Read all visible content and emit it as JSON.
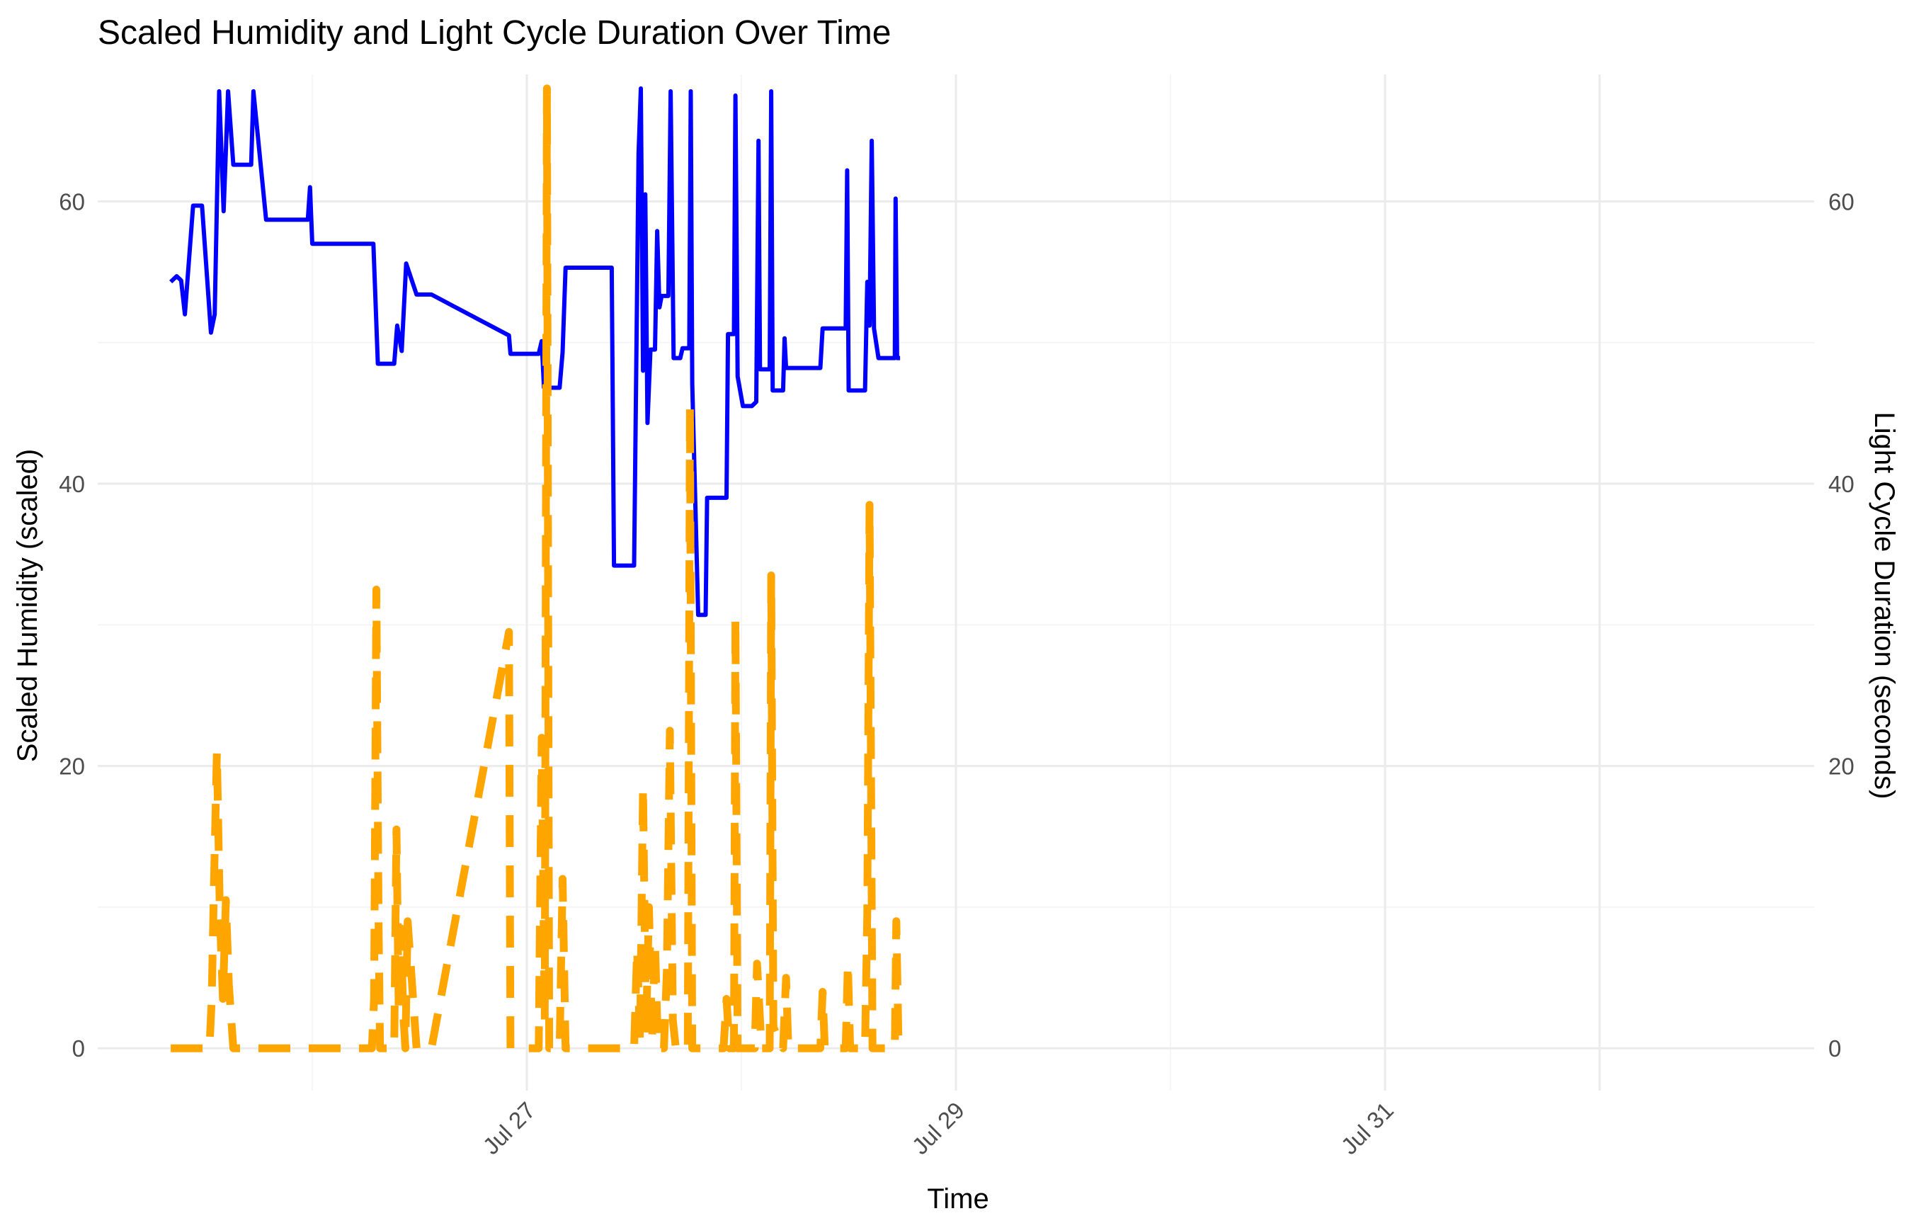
{
  "chart_data": {
    "type": "line",
    "title": "Scaled Humidity and Light Cycle Duration Over Time",
    "xlabel": "Time",
    "ylabel_left": "Scaled Humidity (scaled)",
    "ylabel_right": "Light Cycle Duration (seconds)",
    "x_unit": "days",
    "x_ticks": [
      {
        "x": "2024-07-27",
        "label": "Jul 27"
      },
      {
        "x": "2024-07-29",
        "label": "Jul 29"
      },
      {
        "x": "2024-07-31",
        "label": "Jul 31"
      }
    ],
    "xlim": [
      "2024-07-25 00:00",
      "2024-08-02 00:00"
    ],
    "ylim_left": [
      -3,
      69
    ],
    "ylim_right": [
      -3,
      69
    ],
    "y_ticks_left": [
      0,
      20,
      40,
      60
    ],
    "y_ticks_right": [
      0,
      20,
      40,
      60
    ],
    "grid": true,
    "series": [
      {
        "color": "#0000ff",
        "dash": "solid",
        "points": [
          [
            "2024-07-25 08:10",
            54.3
          ],
          [
            "2024-07-25 08:50",
            54.7
          ],
          [
            "2024-07-25 09:20",
            54.4
          ],
          [
            "2024-07-25 09:45",
            52.0
          ],
          [
            "2024-07-25 10:40",
            59.7
          ],
          [
            "2024-07-25 11:40",
            59.7
          ],
          [
            "2024-07-25 12:40",
            50.7
          ],
          [
            "2024-07-25 13:05",
            52.0
          ],
          [
            "2024-07-25 13:35",
            67.8
          ],
          [
            "2024-07-25 14:05",
            59.3
          ],
          [
            "2024-07-25 14:35",
            67.8
          ],
          [
            "2024-07-25 15:10",
            62.6
          ],
          [
            "2024-07-25 17:10",
            62.6
          ],
          [
            "2024-07-25 17:25",
            67.8
          ],
          [
            "2024-07-25 18:50",
            58.7
          ],
          [
            "2024-07-25 23:30",
            58.7
          ],
          [
            "2024-07-25 23:45",
            61.0
          ],
          [
            "2024-07-26 00:00",
            57.0
          ],
          [
            "2024-07-26 06:50",
            57.0
          ],
          [
            "2024-07-26 07:20",
            48.5
          ],
          [
            "2024-07-26 09:10",
            48.5
          ],
          [
            "2024-07-26 09:30",
            51.2
          ],
          [
            "2024-07-26 10:00",
            49.4
          ],
          [
            "2024-07-26 10:30",
            55.6
          ],
          [
            "2024-07-26 11:40",
            53.4
          ],
          [
            "2024-07-26 13:20",
            53.4
          ],
          [
            "2024-07-26 22:00",
            50.5
          ],
          [
            "2024-07-26 22:10",
            49.2
          ],
          [
            "2024-07-27 01:20",
            49.2
          ],
          [
            "2024-07-27 01:40",
            50.1
          ],
          [
            "2024-07-27 01:55",
            46.8
          ],
          [
            "2024-07-27 03:40",
            46.8
          ],
          [
            "2024-07-27 04:00",
            49.3
          ],
          [
            "2024-07-27 04:20",
            55.3
          ],
          [
            "2024-07-27 09:30",
            55.3
          ],
          [
            "2024-07-27 09:45",
            34.2
          ],
          [
            "2024-07-27 12:00",
            34.2
          ],
          [
            "2024-07-27 12:30",
            63.4
          ],
          [
            "2024-07-27 12:45",
            68.0
          ],
          [
            "2024-07-27 13:00",
            48.0
          ],
          [
            "2024-07-27 13:15",
            60.5
          ],
          [
            "2024-07-27 13:30",
            44.3
          ],
          [
            "2024-07-27 13:50",
            49.5
          ],
          [
            "2024-07-27 14:20",
            49.5
          ],
          [
            "2024-07-27 14:35",
            57.9
          ],
          [
            "2024-07-27 14:50",
            52.5
          ],
          [
            "2024-07-27 15:05",
            53.3
          ],
          [
            "2024-07-27 15:50",
            53.3
          ],
          [
            "2024-07-27 16:05",
            67.8
          ],
          [
            "2024-07-27 16:25",
            48.9
          ],
          [
            "2024-07-27 17:10",
            48.9
          ],
          [
            "2024-07-27 17:25",
            49.6
          ],
          [
            "2024-07-27 18:10",
            49.6
          ],
          [
            "2024-07-27 18:20",
            67.8
          ],
          [
            "2024-07-27 18:30",
            47.1
          ],
          [
            "2024-07-27 19:10",
            30.7
          ],
          [
            "2024-07-27 20:00",
            30.7
          ],
          [
            "2024-07-27 20:10",
            39.0
          ],
          [
            "2024-07-27 22:20",
            39.0
          ],
          [
            "2024-07-27 22:30",
            50.6
          ],
          [
            "2024-07-27 23:10",
            50.6
          ],
          [
            "2024-07-27 23:20",
            67.5
          ],
          [
            "2024-07-27 23:35",
            47.6
          ],
          [
            "2024-07-28 00:10",
            45.5
          ],
          [
            "2024-07-28 01:10",
            45.5
          ],
          [
            "2024-07-28 01:40",
            45.8
          ],
          [
            "2024-07-28 01:55",
            64.3
          ],
          [
            "2024-07-28 02:05",
            48.1
          ],
          [
            "2024-07-28 03:10",
            48.1
          ],
          [
            "2024-07-28 03:20",
            67.8
          ],
          [
            "2024-07-28 03:30",
            46.6
          ],
          [
            "2024-07-28 04:40",
            46.6
          ],
          [
            "2024-07-28 04:50",
            50.3
          ],
          [
            "2024-07-28 05:00",
            48.2
          ],
          [
            "2024-07-28 08:50",
            48.2
          ],
          [
            "2024-07-28 09:05",
            51.0
          ],
          [
            "2024-07-28 11:40",
            51.0
          ],
          [
            "2024-07-28 11:50",
            62.2
          ],
          [
            "2024-07-28 12:00",
            46.6
          ],
          [
            "2024-07-28 13:50",
            46.6
          ],
          [
            "2024-07-28 14:05",
            54.3
          ],
          [
            "2024-07-28 14:20",
            51.2
          ],
          [
            "2024-07-28 14:35",
            64.3
          ],
          [
            "2024-07-28 14:50",
            51.0
          ],
          [
            "2024-07-28 15:20",
            48.9
          ],
          [
            "2024-07-28 17:10",
            48.9
          ],
          [
            "2024-07-28 17:15",
            60.2
          ],
          [
            "2024-07-28 17:25",
            48.9
          ],
          [
            "2024-07-28 17:45",
            48.9
          ]
        ]
      },
      {
        "color": "#ffa500",
        "dash": "dashed",
        "points": [
          [
            "2024-07-25 08:10",
            0
          ],
          [
            "2024-07-25 12:30",
            0
          ],
          [
            "2024-07-25 12:45",
            3.5
          ],
          [
            "2024-07-25 13:00",
            11.5
          ],
          [
            "2024-07-25 13:20",
            21.0
          ],
          [
            "2024-07-25 13:40",
            9.5
          ],
          [
            "2024-07-25 14:00",
            3.5
          ],
          [
            "2024-07-25 14:20",
            10.5
          ],
          [
            "2024-07-25 14:40",
            4.5
          ],
          [
            "2024-07-25 15:10",
            0
          ],
          [
            "2024-07-26 06:40",
            0
          ],
          [
            "2024-07-26 06:55",
            3.5
          ],
          [
            "2024-07-26 07:10",
            32.5
          ],
          [
            "2024-07-26 07:25",
            9.0
          ],
          [
            "2024-07-26 07:35",
            0
          ],
          [
            "2024-07-26 09:10",
            0
          ],
          [
            "2024-07-26 09:25",
            15.5
          ],
          [
            "2024-07-26 09:40",
            3.0
          ],
          [
            "2024-07-26 09:55",
            8.5
          ],
          [
            "2024-07-26 10:10",
            2.5
          ],
          [
            "2024-07-26 10:25",
            0
          ],
          [
            "2024-07-26 10:40",
            9.0
          ],
          [
            "2024-07-26 11:40",
            0
          ],
          [
            "2024-07-26 13:20",
            0
          ],
          [
            "2024-07-26 22:00",
            29.5
          ],
          [
            "2024-07-26 22:10",
            0
          ],
          [
            "2024-07-27 01:20",
            0
          ],
          [
            "2024-07-27 01:40",
            22.0
          ],
          [
            "2024-07-27 02:00",
            2.0
          ],
          [
            "2024-07-27 02:15",
            68.0
          ],
          [
            "2024-07-27 02:30",
            0
          ],
          [
            "2024-07-27 03:40",
            0
          ],
          [
            "2024-07-27 04:00",
            12.0
          ],
          [
            "2024-07-27 04:20",
            0
          ],
          [
            "2024-07-27 12:00",
            0
          ],
          [
            "2024-07-27 12:20",
            7.0
          ],
          [
            "2024-07-27 12:40",
            0.5
          ],
          [
            "2024-07-27 13:00",
            18.5
          ],
          [
            "2024-07-27 13:20",
            1.0
          ],
          [
            "2024-07-27 13:40",
            10.0
          ],
          [
            "2024-07-27 14:00",
            0.5
          ],
          [
            "2024-07-27 14:20",
            7.5
          ],
          [
            "2024-07-27 14:40",
            0
          ],
          [
            "2024-07-27 15:20",
            0
          ],
          [
            "2024-07-27 15:40",
            5.5
          ],
          [
            "2024-07-27 16:00",
            22.5
          ],
          [
            "2024-07-27 16:20",
            2.0
          ],
          [
            "2024-07-27 16:40",
            0
          ],
          [
            "2024-07-27 18:00",
            0
          ],
          [
            "2024-07-27 18:15",
            45.5
          ],
          [
            "2024-07-27 18:30",
            0
          ],
          [
            "2024-07-27 22:00",
            0
          ],
          [
            "2024-07-27 22:20",
            3.5
          ],
          [
            "2024-07-27 22:40",
            0
          ],
          [
            "2024-07-27 23:10",
            0
          ],
          [
            "2024-07-27 23:20",
            30.5
          ],
          [
            "2024-07-27 23:35",
            0
          ],
          [
            "2024-07-28 01:30",
            0
          ],
          [
            "2024-07-28 01:45",
            6.0
          ],
          [
            "2024-07-28 02:00",
            3.0
          ],
          [
            "2024-07-28 02:15",
            0
          ],
          [
            "2024-07-28 03:10",
            0
          ],
          [
            "2024-07-28 03:20",
            33.5
          ],
          [
            "2024-07-28 03:35",
            1.5
          ],
          [
            "2024-07-28 04:40",
            0
          ],
          [
            "2024-07-28 05:00",
            5.0
          ],
          [
            "2024-07-28 05:15",
            0
          ],
          [
            "2024-07-28 08:50",
            0
          ],
          [
            "2024-07-28 09:05",
            4.0
          ],
          [
            "2024-07-28 09:20",
            0
          ],
          [
            "2024-07-28 11:40",
            0
          ],
          [
            "2024-07-28 11:55",
            6.0
          ],
          [
            "2024-07-28 12:10",
            0
          ],
          [
            "2024-07-28 13:50",
            0
          ],
          [
            "2024-07-28 14:05",
            9.5
          ],
          [
            "2024-07-28 14:20",
            38.5
          ],
          [
            "2024-07-28 14:40",
            0
          ],
          [
            "2024-07-28 17:10",
            0
          ],
          [
            "2024-07-28 17:20",
            9.0
          ],
          [
            "2024-07-28 17:35",
            0
          ]
        ]
      }
    ]
  }
}
